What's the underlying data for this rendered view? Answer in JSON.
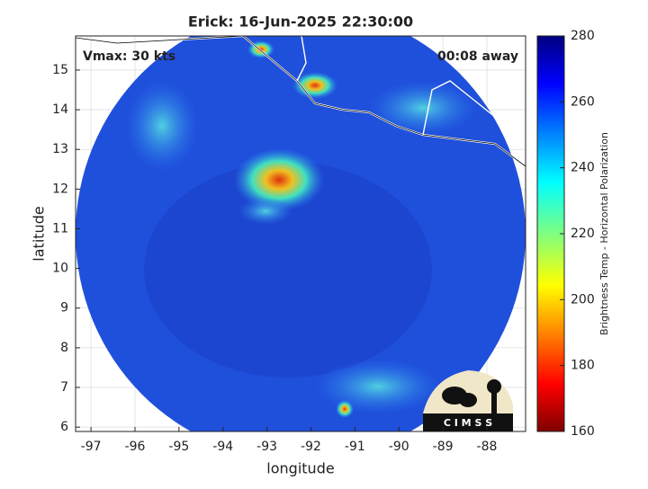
{
  "chart_data": {
    "type": "map",
    "title": "Erick: 16-Jun-2025 22:30:00",
    "annotations": [
      "Vmax: 30 kts",
      "00:08 away"
    ],
    "xlabel": "longitude",
    "ylabel": "latitude",
    "xlim": [
      -97.35,
      -87.12
    ],
    "ylim": [
      5.89,
      15.86
    ],
    "xticks": [
      -97,
      -96,
      -95,
      -94,
      -93,
      -92,
      -91,
      -90,
      -89,
      -88
    ],
    "yticks": [
      6,
      7,
      8,
      9,
      10,
      11,
      12,
      13,
      14,
      15
    ],
    "grid": true,
    "colorbar": {
      "label": "Brightness Temp - Horizontal Polarization",
      "lim": [
        160,
        280
      ],
      "ticks": [
        160,
        180,
        200,
        220,
        240,
        260,
        280
      ]
    },
    "logo_text": "C I M S S"
  }
}
